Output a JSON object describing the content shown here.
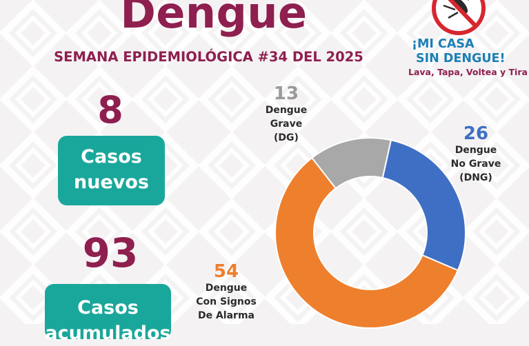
{
  "header": {
    "title": "Dengue",
    "subtitle": "SEMANA EPIDEMIOLÓGICA #34 DEL 2025"
  },
  "stats": {
    "new_cases": {
      "value": "8",
      "label_line1": "Casos",
      "label_line2": "nuevos"
    },
    "accumulated_cases": {
      "value": "93",
      "label_line1": "Casos",
      "label_line2": "acumulados"
    }
  },
  "campaign": {
    "line1": "¡MI CASA",
    "line2": "SIN DENGUE!",
    "line3": "Lava, Tapa, Voltea y Tira",
    "icon": "mosquito-prohibited-icon"
  },
  "colors": {
    "brand": "#8e1f4f",
    "teal": "#1aa79b",
    "dng": "#3f6fc4",
    "dsa": "#ee7f2d",
    "dg": "#a8a8a8"
  },
  "chart_data": {
    "type": "pie",
    "donut": true,
    "categories": [
      "Dengue No Grave (DNG)",
      "Dengue Con Signos De Alarma",
      "Dengue Grave (DG)"
    ],
    "values": [
      26,
      54,
      13
    ],
    "labels": [
      {
        "value": "26",
        "lines": [
          "Dengue",
          "No Grave",
          "(DNG)"
        ]
      },
      {
        "value": "54",
        "lines": [
          "Dengue",
          "Con Signos",
          "De Alarma"
        ]
      },
      {
        "value": "13",
        "lines": [
          "Dengue",
          "Grave",
          "(DG)"
        ]
      }
    ],
    "colors": [
      "#3f6fc4",
      "#ee7f2d",
      "#a8a8a8"
    ],
    "start": "top-right, clockwise"
  }
}
